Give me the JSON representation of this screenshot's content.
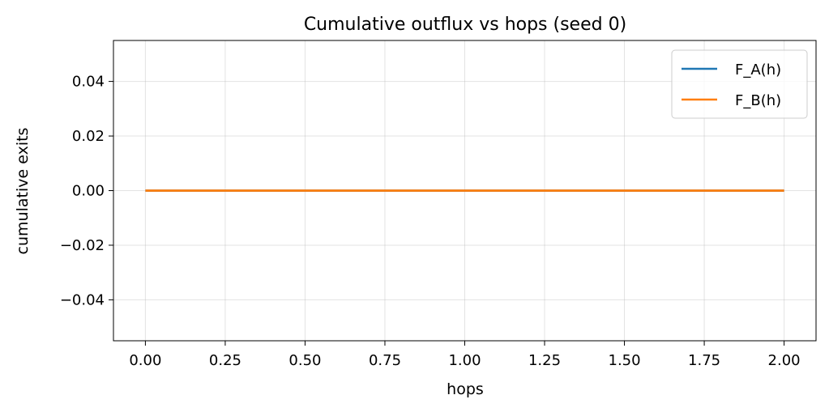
{
  "chart_data": {
    "type": "line",
    "title": "Cumulative outflux vs hops (seed 0)",
    "xlabel": "hops",
    "ylabel": "cumulative exits",
    "xlim": [
      -0.1,
      2.1
    ],
    "ylim": [
      -0.055,
      0.055
    ],
    "xticks": [
      0.0,
      0.25,
      0.5,
      0.75,
      1.0,
      1.25,
      1.5,
      1.75,
      2.0
    ],
    "xtick_labels": [
      "0.00",
      "0.25",
      "0.50",
      "0.75",
      "1.00",
      "1.25",
      "1.50",
      "1.75",
      "2.00"
    ],
    "yticks": [
      -0.04,
      -0.02,
      0.0,
      0.02,
      0.04
    ],
    "ytick_labels": [
      "−0.04",
      "−0.02",
      "0.00",
      "0.02",
      "0.04"
    ],
    "grid": true,
    "legend_position": "top-right",
    "x": [
      0,
      1,
      2
    ],
    "series": [
      {
        "name": "F_A(h)",
        "color": "#1f77b4",
        "values": [
          0,
          0,
          0
        ]
      },
      {
        "name": "F_B(h)",
        "color": "#ff7f0e",
        "values": [
          0,
          0,
          0
        ]
      }
    ]
  }
}
